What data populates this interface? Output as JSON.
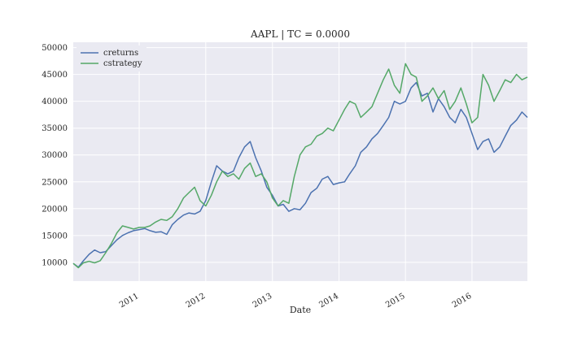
{
  "chart_data": {
    "type": "line",
    "title": "AAPL | TC = 0.0000",
    "xlabel": "Date",
    "ylabel": "",
    "x_range": [
      "2010-01-04",
      "2016-10-31"
    ],
    "ylim": [
      6500,
      51000
    ],
    "yticks": [
      10000,
      15000,
      20000,
      25000,
      30000,
      35000,
      40000,
      45000,
      50000
    ],
    "xticks": [
      {
        "label": "2011",
        "date": "2011-01-01"
      },
      {
        "label": "2012",
        "date": "2012-01-01"
      },
      {
        "label": "2013",
        "date": "2013-01-01"
      },
      {
        "label": "2014",
        "date": "2014-01-01"
      },
      {
        "label": "2015",
        "date": "2015-01-01"
      },
      {
        "label": "2016",
        "date": "2016-01-01"
      }
    ],
    "grid": true,
    "legend": "top-left",
    "colors": {
      "background": "#eaeaf2",
      "grid": "#ffffff",
      "creturns": "#4c72b0",
      "cstrategy": "#55a868"
    },
    "series": [
      {
        "name": "creturns",
        "x": [
          "2010-01-04",
          "2010-02-01",
          "2010-03-01",
          "2010-04-01",
          "2010-05-01",
          "2010-06-01",
          "2010-07-01",
          "2010-08-01",
          "2010-09-01",
          "2010-10-01",
          "2010-11-01",
          "2010-12-01",
          "2011-01-01",
          "2011-02-01",
          "2011-03-01",
          "2011-04-01",
          "2011-05-01",
          "2011-06-01",
          "2011-07-01",
          "2011-08-01",
          "2011-09-01",
          "2011-10-01",
          "2011-11-01",
          "2011-12-01",
          "2012-01-01",
          "2012-02-01",
          "2012-03-01",
          "2012-04-01",
          "2012-05-01",
          "2012-06-01",
          "2012-07-01",
          "2012-08-01",
          "2012-09-01",
          "2012-10-01",
          "2012-11-01",
          "2012-12-01",
          "2013-01-01",
          "2013-02-01",
          "2013-03-01",
          "2013-04-01",
          "2013-05-01",
          "2013-06-01",
          "2013-07-01",
          "2013-08-01",
          "2013-09-01",
          "2013-10-01",
          "2013-11-01",
          "2013-12-01",
          "2014-01-01",
          "2014-02-01",
          "2014-03-01",
          "2014-04-01",
          "2014-05-01",
          "2014-06-01",
          "2014-07-01",
          "2014-08-01",
          "2014-09-01",
          "2014-10-01",
          "2014-11-01",
          "2014-12-01",
          "2015-01-01",
          "2015-02-01",
          "2015-03-01",
          "2015-04-01",
          "2015-05-01",
          "2015-06-01",
          "2015-07-01",
          "2015-08-01",
          "2015-09-01",
          "2015-10-01",
          "2015-11-01",
          "2015-12-01",
          "2016-01-01",
          "2016-02-01",
          "2016-03-01",
          "2016-04-01",
          "2016-05-01",
          "2016-06-01",
          "2016-07-01",
          "2016-08-01",
          "2016-09-01",
          "2016-10-01",
          "2016-10-31"
        ],
        "values": [
          9800,
          9100,
          10300,
          11500,
          12300,
          11800,
          12000,
          13100,
          14200,
          15000,
          15500,
          15900,
          16100,
          16300,
          15900,
          15600,
          15700,
          15200,
          17000,
          18000,
          18800,
          19200,
          19000,
          19500,
          21500,
          25000,
          28000,
          27000,
          26500,
          27000,
          29500,
          31500,
          32500,
          29500,
          27000,
          24000,
          22500,
          20500,
          20800,
          19500,
          20000,
          19800,
          21000,
          23000,
          23800,
          25500,
          26000,
          24500,
          24800,
          25000,
          26500,
          28000,
          30500,
          31500,
          33000,
          34000,
          35500,
          37000,
          40000,
          39500,
          40000,
          42500,
          43500,
          41000,
          41500,
          38000,
          40500,
          39000,
          37000,
          36000,
          38500,
          37000,
          34000,
          31000,
          32500,
          33000,
          30500,
          31500,
          33500,
          35500,
          36500,
          38000,
          37000
        ]
      },
      {
        "name": "cstrategy",
        "x": [
          "2010-01-04",
          "2010-02-01",
          "2010-03-01",
          "2010-04-01",
          "2010-05-01",
          "2010-06-01",
          "2010-07-01",
          "2010-08-01",
          "2010-09-01",
          "2010-10-01",
          "2010-11-01",
          "2010-12-01",
          "2011-01-01",
          "2011-02-01",
          "2011-03-01",
          "2011-04-01",
          "2011-05-01",
          "2011-06-01",
          "2011-07-01",
          "2011-08-01",
          "2011-09-01",
          "2011-10-01",
          "2011-11-01",
          "2011-12-01",
          "2012-01-01",
          "2012-02-01",
          "2012-03-01",
          "2012-04-01",
          "2012-05-01",
          "2012-06-01",
          "2012-07-01",
          "2012-08-01",
          "2012-09-01",
          "2012-10-01",
          "2012-11-01",
          "2012-12-01",
          "2013-01-01",
          "2013-02-01",
          "2013-03-01",
          "2013-04-01",
          "2013-05-01",
          "2013-06-01",
          "2013-07-01",
          "2013-08-01",
          "2013-09-01",
          "2013-10-01",
          "2013-11-01",
          "2013-12-01",
          "2014-01-01",
          "2014-02-01",
          "2014-03-01",
          "2014-04-01",
          "2014-05-01",
          "2014-06-01",
          "2014-07-01",
          "2014-08-01",
          "2014-09-01",
          "2014-10-01",
          "2014-11-01",
          "2014-12-01",
          "2015-01-01",
          "2015-02-01",
          "2015-03-01",
          "2015-04-01",
          "2015-05-01",
          "2015-06-01",
          "2015-07-01",
          "2015-08-01",
          "2015-09-01",
          "2015-10-01",
          "2015-11-01",
          "2015-12-01",
          "2016-01-01",
          "2016-02-01",
          "2016-03-01",
          "2016-04-01",
          "2016-05-01",
          "2016-06-01",
          "2016-07-01",
          "2016-08-01",
          "2016-09-01",
          "2016-10-01",
          "2016-10-31"
        ],
        "values": [
          9800,
          9000,
          9900,
          10200,
          9900,
          10300,
          11800,
          13500,
          15500,
          16800,
          16500,
          16200,
          16500,
          16500,
          16800,
          17500,
          18000,
          17800,
          18500,
          20000,
          22000,
          23000,
          24000,
          21500,
          20500,
          22500,
          25000,
          27000,
          26000,
          26500,
          25500,
          27500,
          28500,
          26000,
          26500,
          25000,
          22000,
          20500,
          21500,
          21000,
          26000,
          30000,
          31500,
          32000,
          33500,
          34000,
          35000,
          34500,
          36500,
          38500,
          40000,
          39500,
          37000,
          38000,
          39000,
          41500,
          44000,
          46000,
          43000,
          41500,
          47000,
          45000,
          44500,
          40000,
          41000,
          42500,
          40500,
          42000,
          38500,
          40000,
          42500,
          39500,
          36000,
          37000,
          45000,
          43000,
          40000,
          42000,
          44000,
          43500,
          45000,
          44000,
          44500
        ]
      }
    ]
  }
}
